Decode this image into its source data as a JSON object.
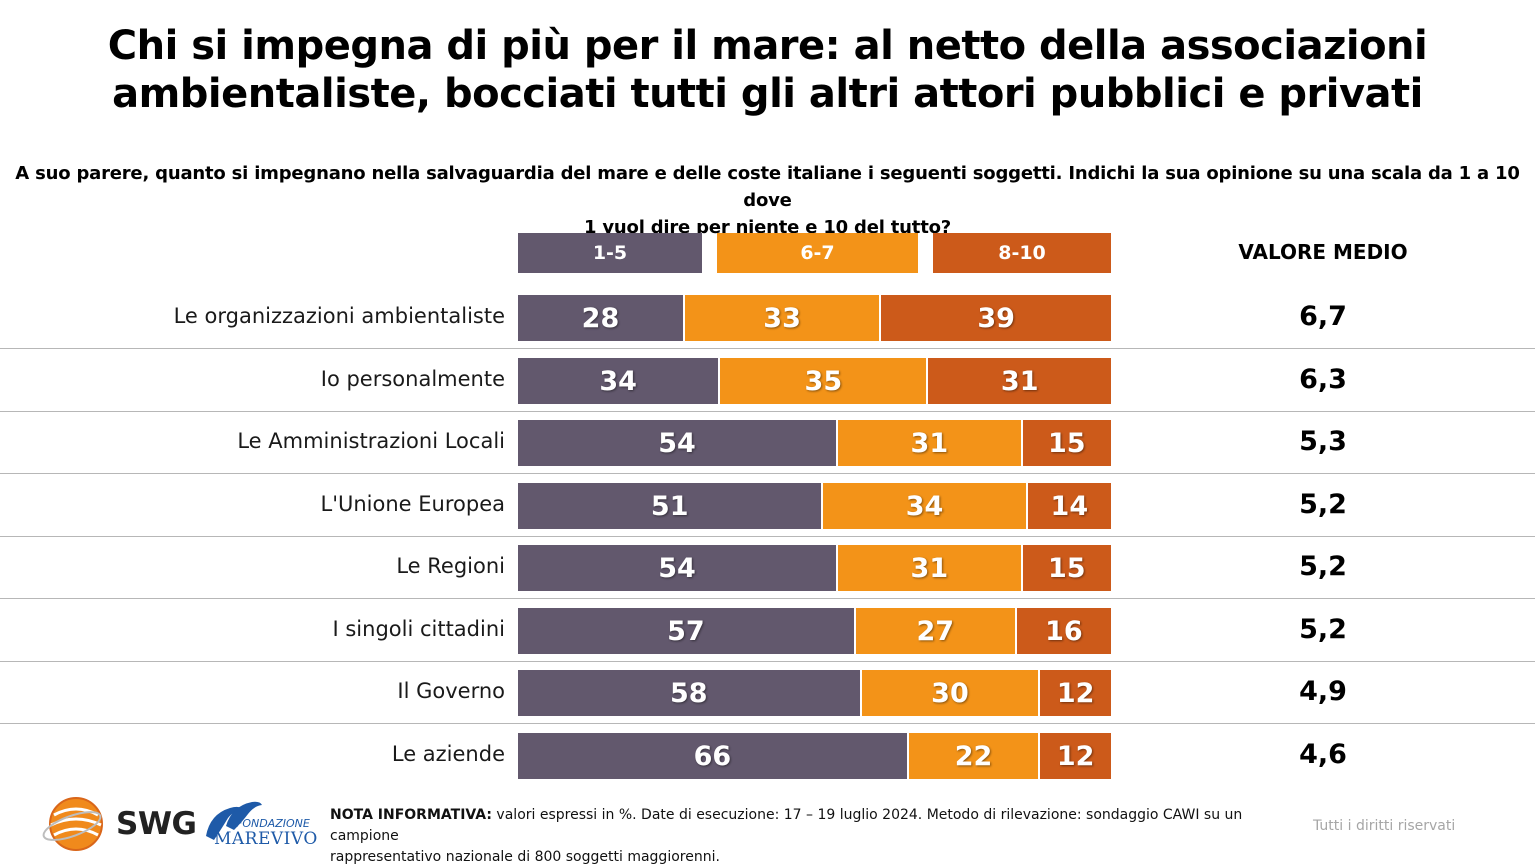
{
  "title_lines": [
    "Chi si impegna di più per il mare: al netto della associazioni",
    "ambientaliste, bocciati tutti gli altri attori pubblici e privati"
  ],
  "subtitle_lines": [
    "A suo parere, quanto si impegnano nella salvaguardia del mare e delle coste italiane i seguenti soggetti. Indichi la sua opinione su una scala da 1 a 10 dove",
    "1 vuol dire per niente e 10 del tutto?"
  ],
  "colors": {
    "low": "#62586d",
    "mid": "#f39318",
    "high": "#cc5a1a",
    "separator": "#b7b7b7"
  },
  "chart_data": {
    "type": "bar",
    "orientation": "horizontal",
    "stacked": true,
    "unit": "%",
    "title": "Chi si impegna di più per il mare: al netto della associazioni ambientaliste, bocciati tutti gli altri attori pubblici e privati",
    "xlabel": "",
    "ylabel": "",
    "xlim": [
      0,
      100
    ],
    "grid": false,
    "legend_position": "top",
    "categories": [
      "Le organizzazioni ambientaliste",
      "Io personalmente",
      "Le Amministrazioni Locali",
      "L'Unione Europea",
      "Le Regioni",
      "I singoli cittadini",
      "Il Governo",
      "Le aziende"
    ],
    "series": [
      {
        "name": "1-5",
        "values": [
          28,
          34,
          54,
          51,
          54,
          57,
          58,
          66
        ]
      },
      {
        "name": "6-7",
        "values": [
          33,
          35,
          31,
          34,
          31,
          27,
          30,
          22
        ]
      },
      {
        "name": "8-10",
        "values": [
          39,
          31,
          15,
          14,
          15,
          16,
          12,
          12
        ]
      }
    ],
    "side_column": {
      "header": "VALORE MEDIO",
      "values": [
        "6,7",
        "6,3",
        "5,3",
        "5,2",
        "5,2",
        "5,2",
        "4,9",
        "4,6"
      ]
    }
  },
  "footer": {
    "note_label": "NOTA INFORMATIVA:",
    "note_text_line1": " valori espressi in %. Date di esecuzione: 17 – 19 luglio 2024. Metodo di rilevazione: sondaggio CAWI su un campione",
    "note_text_line2": "rappresentativo nazionale di 800 soggetti maggiorenni.",
    "rights": "Tutti i diritti riservati",
    "logo_swg": "SWG",
    "logo_fondazione": "FONDAZIONE",
    "logo_marevivo": "MAREVIVO"
  }
}
